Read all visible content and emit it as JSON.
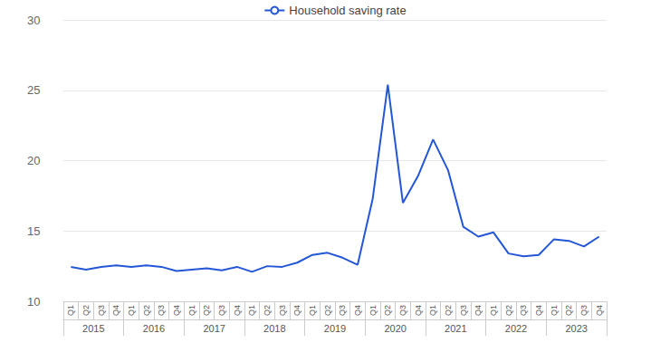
{
  "chart_data": {
    "type": "line",
    "categories": [
      "Q1",
      "Q2",
      "Q3",
      "Q4",
      "Q1",
      "Q2",
      "Q3",
      "Q4",
      "Q1",
      "Q2",
      "Q3",
      "Q4",
      "Q1",
      "Q2",
      "Q3",
      "Q4",
      "Q1",
      "Q2",
      "Q3",
      "Q4",
      "Q1",
      "Q2",
      "Q3",
      "Q4",
      "Q1",
      "Q2",
      "Q3",
      "Q4",
      "Q1",
      "Q2",
      "Q3",
      "Q4",
      "Q1",
      "Q2",
      "Q3",
      "Q4"
    ],
    "years": [
      "2015",
      "2016",
      "2017",
      "2018",
      "2019",
      "2020",
      "2021",
      "2022",
      "2023"
    ],
    "series": [
      {
        "name": "Household saving rate",
        "color": "#2457d6",
        "values": [
          12.45,
          12.25,
          12.45,
          12.55,
          12.45,
          12.55,
          12.45,
          12.15,
          12.25,
          12.35,
          12.2,
          12.45,
          12.1,
          12.5,
          12.45,
          12.75,
          13.3,
          13.45,
          13.1,
          12.6,
          17.3,
          25.4,
          17.0,
          18.9,
          21.5,
          19.3,
          15.3,
          14.6,
          14.9,
          13.4,
          13.2,
          13.3,
          14.4,
          14.3,
          13.9,
          14.6
        ]
      }
    ],
    "ylim": [
      10,
      30
    ],
    "yticks": [
      10,
      15,
      20,
      25,
      30
    ],
    "grid": true,
    "legend": "top",
    "marker": "none"
  }
}
